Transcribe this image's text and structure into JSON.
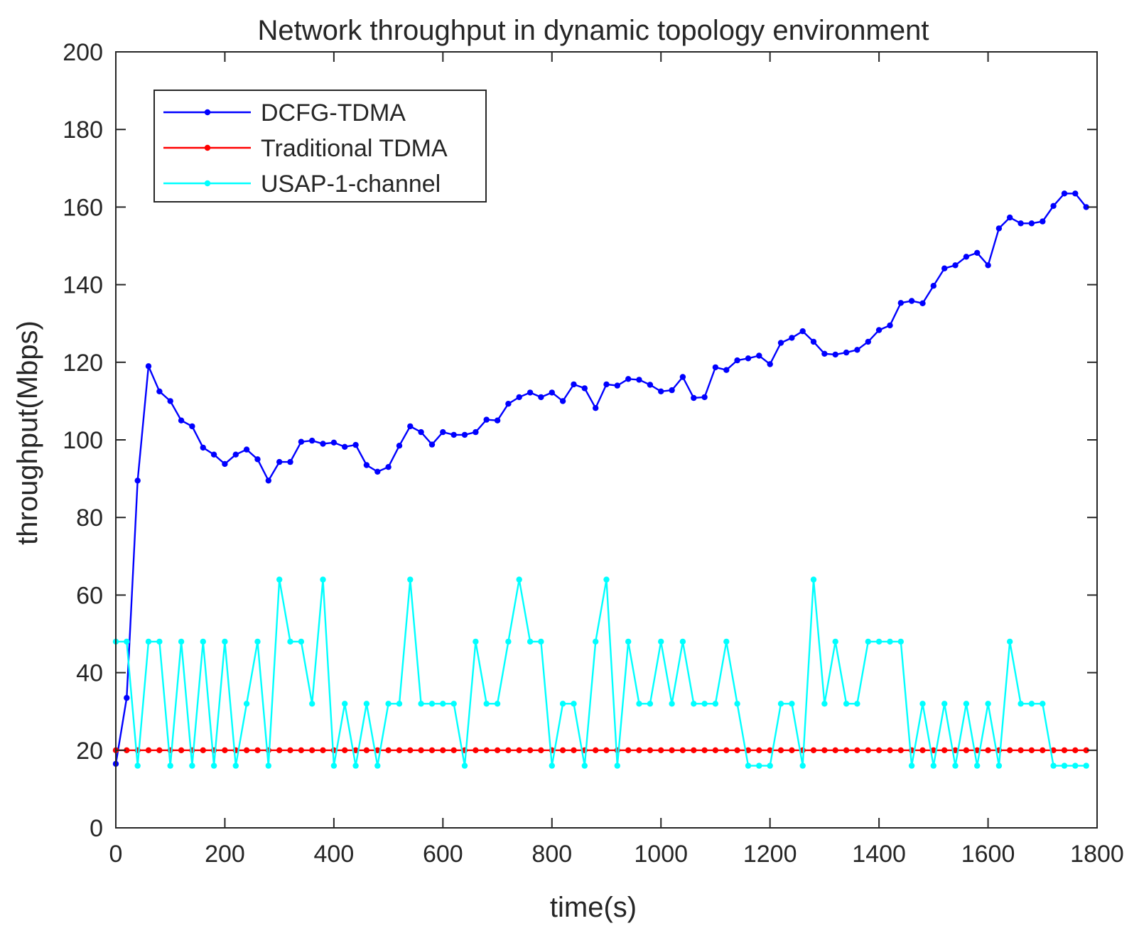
{
  "chart_data": {
    "type": "line",
    "title": "Network throughput in dynamic topology environment",
    "xlabel": "time(s)",
    "ylabel": "throughput(Mbps)",
    "xlim": [
      0,
      1800
    ],
    "ylim": [
      0,
      200
    ],
    "xticks": [
      0,
      200,
      400,
      600,
      800,
      1000,
      1200,
      1400,
      1600,
      1800
    ],
    "yticks": [
      0,
      20,
      40,
      60,
      80,
      100,
      120,
      140,
      160,
      180,
      200
    ],
    "grid": false,
    "legend_position": "top-left",
    "x": [
      0,
      20,
      40,
      60,
      80,
      100,
      120,
      140,
      160,
      180,
      200,
      220,
      240,
      260,
      280,
      300,
      320,
      340,
      360,
      380,
      400,
      420,
      440,
      460,
      480,
      500,
      520,
      540,
      560,
      580,
      600,
      620,
      640,
      660,
      680,
      700,
      720,
      740,
      760,
      780,
      800,
      820,
      840,
      860,
      880,
      900,
      920,
      940,
      960,
      980,
      1000,
      1020,
      1040,
      1060,
      1080,
      1100,
      1120,
      1140,
      1160,
      1180,
      1200,
      1220,
      1240,
      1260,
      1280,
      1300,
      1320,
      1340,
      1360,
      1380,
      1400,
      1420,
      1440,
      1460,
      1480,
      1500,
      1520,
      1540,
      1560,
      1580,
      1600,
      1620,
      1640,
      1660,
      1680,
      1700,
      1720,
      1740,
      1760,
      1780
    ],
    "series": [
      {
        "name": "DCFG-TDMA",
        "color": "#0000ff",
        "values": [
          16.5,
          33.5,
          89.5,
          119,
          112.5,
          110,
          105,
          103.5,
          98,
          96.2,
          93.8,
          96.2,
          97.5,
          95,
          89.5,
          94.3,
          94.3,
          99.5,
          99.8,
          99,
          99.3,
          98.2,
          98.7,
          93.5,
          91.8,
          93,
          98.5,
          103.5,
          102,
          98.8,
          102,
          101.3,
          101.3,
          102,
          105.2,
          105,
          109.3,
          111,
          112.2,
          111,
          112.2,
          110,
          114.3,
          113.3,
          108.2,
          114.3,
          114,
          115.7,
          115.5,
          114.2,
          112.5,
          112.8,
          116.2,
          110.8,
          111,
          118.7,
          118,
          120.5,
          121,
          121.7,
          119.5,
          125,
          126.3,
          128,
          125.3,
          122.2,
          122,
          122.5,
          123.2,
          125.3,
          128.3,
          129.5,
          135.3,
          135.8,
          135.2,
          139.7,
          144.2,
          145,
          147.2,
          148.2,
          145,
          154.5,
          157.3,
          155.8,
          155.8,
          156.3,
          160.3,
          163.5,
          163.5,
          160
        ]
      },
      {
        "name": "Traditional TDMA",
        "color": "#ff0000",
        "values": [
          20,
          20,
          20,
          20,
          20,
          20,
          20,
          20,
          20,
          20,
          20,
          20,
          20,
          20,
          20,
          20,
          20,
          20,
          20,
          20,
          20,
          20,
          20,
          20,
          20,
          20,
          20,
          20,
          20,
          20,
          20,
          20,
          20,
          20,
          20,
          20,
          20,
          20,
          20,
          20,
          20,
          20,
          20,
          20,
          20,
          20,
          20,
          20,
          20,
          20,
          20,
          20,
          20,
          20,
          20,
          20,
          20,
          20,
          20,
          20,
          20,
          20,
          20,
          20,
          20,
          20,
          20,
          20,
          20,
          20,
          20,
          20,
          20,
          20,
          20,
          20,
          20,
          20,
          20,
          20,
          20,
          20,
          20,
          20,
          20,
          20,
          20,
          20,
          20,
          20
        ]
      },
      {
        "name": "USAP-1-channel",
        "color": "#00ffff",
        "values": [
          48,
          48,
          16,
          48,
          48,
          16,
          48,
          16,
          48,
          16,
          48,
          16,
          32,
          48,
          16,
          64,
          48,
          48,
          32,
          64,
          16,
          32,
          16,
          32,
          16,
          32,
          32,
          64,
          32,
          32,
          32,
          32,
          16,
          48,
          32,
          32,
          48,
          64,
          48,
          48,
          16,
          32,
          32,
          16,
          48,
          64,
          16,
          48,
          32,
          32,
          48,
          32,
          48,
          32,
          32,
          32,
          48,
          32,
          16,
          16,
          16,
          32,
          32,
          16,
          64,
          32,
          48,
          32,
          32,
          48,
          48,
          48,
          48,
          16,
          32,
          16,
          32,
          16,
          32,
          16,
          32,
          16,
          48,
          32,
          32,
          32,
          16,
          16,
          16,
          16
        ]
      }
    ]
  }
}
